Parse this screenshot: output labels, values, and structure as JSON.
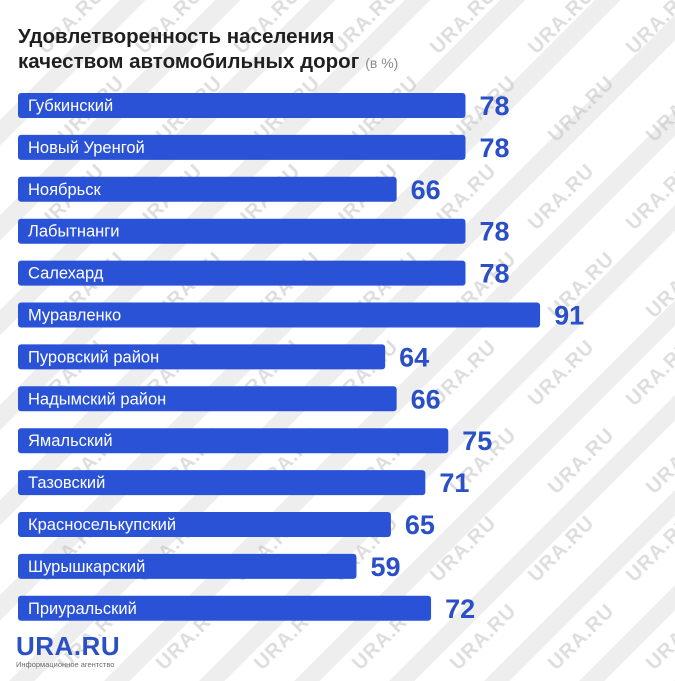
{
  "title": {
    "line1": "Удовлетворенность населения",
    "line2": "качеством автомобильных дорог",
    "unit": "(в %)"
  },
  "chart_data": {
    "type": "bar",
    "orientation": "horizontal",
    "categories": [
      "Губкинский",
      "Новый Уренгой",
      "Ноябрьск",
      "Лабытнанги",
      "Салехард",
      "Муравленко",
      "Пуровский район",
      "Надымский район",
      "Ямальский",
      "Тазовский",
      "Красноселькупский",
      "Шурышкарский",
      "Приуральский"
    ],
    "values": [
      78,
      78,
      66,
      78,
      78,
      91,
      64,
      66,
      75,
      71,
      65,
      59,
      72
    ],
    "bar_color": "#2a52d6",
    "value_color": "#2a4fc6"
  },
  "logo": {
    "name": "URA.RU",
    "subtitle": "Информационное агентство"
  },
  "watermark": "URA.RU"
}
